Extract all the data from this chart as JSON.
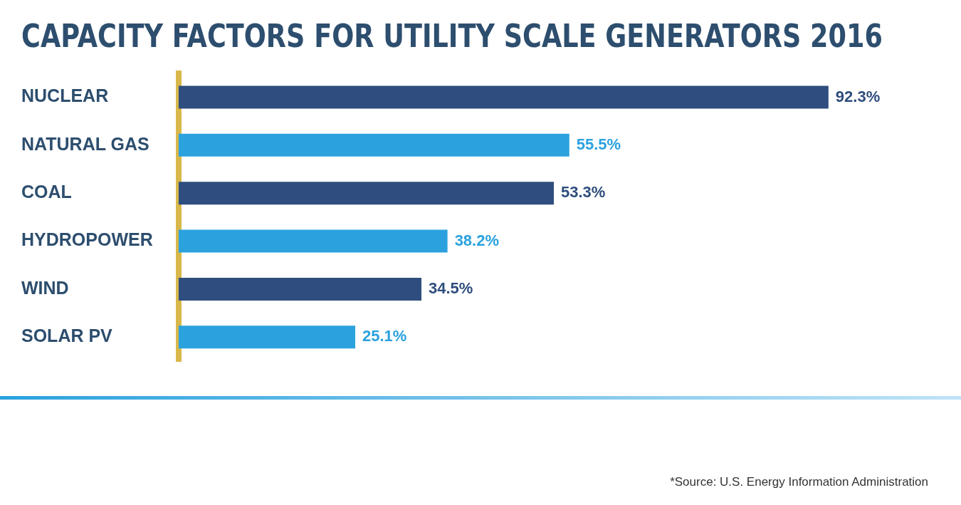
{
  "chart_data": {
    "type": "bar",
    "orientation": "horizontal",
    "title": "CAPACITY FACTORS FOR UTILITY SCALE GENERATORS 2016",
    "categories": [
      "NUCLEAR",
      "NATURAL GAS",
      "COAL",
      "HYDROPOWER",
      "WIND",
      "SOLAR PV"
    ],
    "values": [
      92.3,
      55.5,
      53.3,
      38.2,
      34.5,
      25.1
    ],
    "colors": [
      "#2f4d7e",
      "#2ba2de",
      "#2f4d7e",
      "#2ba2de",
      "#2f4d7e",
      "#2ba2de"
    ],
    "value_labels": [
      "92.3%",
      "55.5%",
      "53.3%",
      "38.2%",
      "34.5%",
      "25.1%"
    ],
    "legend": false,
    "annotations": [
      "*Source: U.S. Energy Information Administration"
    ]
  }
}
